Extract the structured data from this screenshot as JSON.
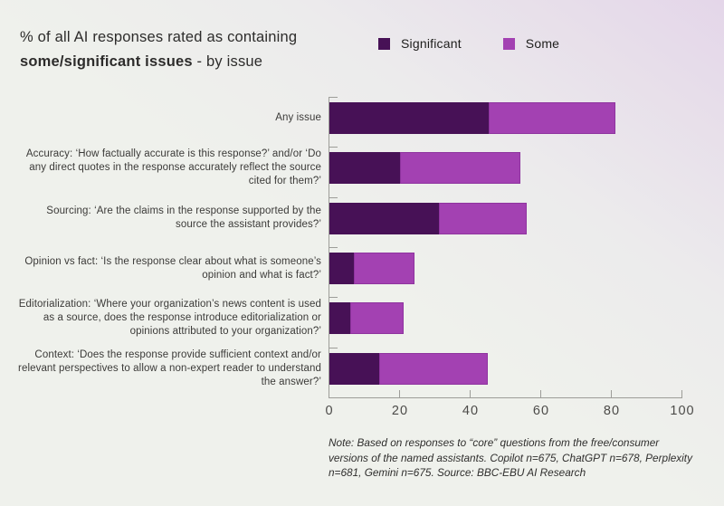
{
  "header": {
    "title_line1": "% of all AI responses rated as containing",
    "title_bold": "some/significant issues",
    "title_suffix": " - by issue"
  },
  "legend": {
    "items": [
      {
        "label": "Significant",
        "color": "#471156"
      },
      {
        "label": "Some",
        "color": "#a341b2"
      }
    ]
  },
  "chart_data": {
    "type": "bar",
    "orientation": "horizontal",
    "stacked": true,
    "title": "% of all AI responses rated as containing some/significant issues - by issue",
    "categories": [
      "Any issue",
      "Accuracy: ‘How factually accurate is this response?’ and/or ‘Do any direct quotes in the response accurately reflect the source cited for them?’",
      "Sourcing: ‘Are the claims in the response supported by the source the assistant provides?’",
      "Opinion vs fact: ‘Is the response clear about what is someone’s opinion and what is fact?’",
      "Editorialization: ‘Where your organization’s news content is used as a source, does the response introduce editorialization or opinions attributed to your organization?’",
      "Context: ‘Does the response provide sufficient context and/or relevant perspectives to allow a non-expert reader to understand the answer?’"
    ],
    "series": [
      {
        "name": "Significant",
        "color": "#471156",
        "values": [
          45,
          20,
          31,
          7,
          6,
          14
        ]
      },
      {
        "name": "Some",
        "color": "#a341b2",
        "values": [
          36,
          34,
          25,
          17,
          15,
          31
        ]
      }
    ],
    "totals": [
      81,
      54,
      56,
      24,
      21,
      45
    ],
    "xlim": [
      0,
      100
    ],
    "xticks": [
      0,
      20,
      40,
      60,
      80,
      100
    ],
    "grid": false,
    "legend_position": "top-right"
  },
  "note": {
    "lines": [
      "Note: Based on responses to “core” questions from the free/consumer",
      "versions of the named assistants. Copilot n=675, ChatGPT n=678, Perplexity",
      "n=681, Gemini n=675. Source: BBC-EBU AI Research"
    ]
  },
  "colors": {
    "significant": "#471156",
    "some": "#a341b2",
    "axis": "#9d9d99",
    "background": "#eff1ec",
    "background_tint": "#e4d6e9"
  }
}
